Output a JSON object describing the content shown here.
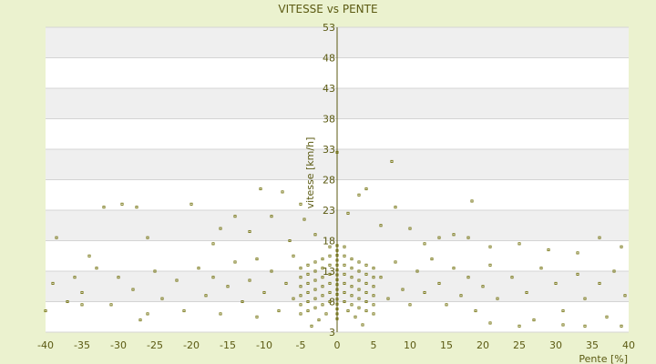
{
  "chart_data": {
    "type": "scatter",
    "title": "VITESSE vs PENTE",
    "xlabel": "Pente [%]",
    "ylabel": "vitesse [km/h]",
    "xlim": [
      -40,
      40
    ],
    "ylim": [
      3,
      53
    ],
    "x_ticks": [
      -40,
      -35,
      -30,
      -25,
      -20,
      -15,
      -10,
      -5,
      0,
      5,
      10,
      15,
      20,
      25,
      30,
      35,
      40
    ],
    "y_ticks": [
      3,
      8,
      13,
      18,
      23,
      28,
      33,
      38,
      43,
      48,
      53
    ],
    "grid": true,
    "legend": "none",
    "series": [
      {
        "marker_color": "#6b6a00",
        "points": [
          [
            0,
            5.2
          ],
          [
            0,
            6.0
          ],
          [
            0,
            6.8
          ],
          [
            0,
            7.6
          ],
          [
            0,
            8.4
          ],
          [
            0,
            9.2
          ],
          [
            0,
            10.0
          ],
          [
            0,
            10.8
          ],
          [
            0,
            11.6
          ],
          [
            0,
            12.4
          ],
          [
            0,
            13.2
          ],
          [
            0,
            14.0
          ],
          [
            0,
            14.8
          ],
          [
            0,
            15.6
          ],
          [
            0,
            16.4
          ],
          [
            0,
            17.2
          ],
          [
            0,
            32.5
          ],
          [
            -1,
            8.0
          ],
          [
            -1,
            9.5
          ],
          [
            -1,
            11.0
          ],
          [
            -1,
            12.5
          ],
          [
            -1,
            14.0
          ],
          [
            -1,
            15.5
          ],
          [
            -1,
            17.0
          ],
          [
            -2,
            7.5
          ],
          [
            -2,
            9.0
          ],
          [
            -2,
            10.5
          ],
          [
            -2,
            12.0
          ],
          [
            -2,
            13.5
          ],
          [
            -2,
            15.0
          ],
          [
            -3,
            7.0
          ],
          [
            -3,
            8.5
          ],
          [
            -3,
            10.0
          ],
          [
            -3,
            11.5
          ],
          [
            -3,
            13.0
          ],
          [
            -3,
            14.5
          ],
          [
            -4,
            6.5
          ],
          [
            -4,
            8.0
          ],
          [
            -4,
            9.5
          ],
          [
            -4,
            11.0
          ],
          [
            -4,
            12.5
          ],
          [
            -4,
            14.0
          ],
          [
            -5,
            6.0
          ],
          [
            -5,
            7.5
          ],
          [
            -5,
            9.0
          ],
          [
            -5,
            10.5
          ],
          [
            -5,
            12.0
          ],
          [
            -5,
            13.5
          ],
          [
            1,
            8.0
          ],
          [
            1,
            9.5
          ],
          [
            1,
            11.0
          ],
          [
            1,
            12.5
          ],
          [
            1,
            14.0
          ],
          [
            1,
            15.5
          ],
          [
            1,
            17.0
          ],
          [
            2,
            7.5
          ],
          [
            2,
            9.0
          ],
          [
            2,
            10.5
          ],
          [
            2,
            12.0
          ],
          [
            2,
            13.5
          ],
          [
            2,
            15.0
          ],
          [
            3,
            7.0
          ],
          [
            3,
            8.5
          ],
          [
            3,
            10.0
          ],
          [
            3,
            11.5
          ],
          [
            3,
            13.0
          ],
          [
            3,
            14.5
          ],
          [
            4,
            6.5
          ],
          [
            4,
            8.0
          ],
          [
            4,
            9.5
          ],
          [
            4,
            11.0
          ],
          [
            4,
            12.5
          ],
          [
            4,
            14.0
          ],
          [
            5,
            6.0
          ],
          [
            5,
            7.5
          ],
          [
            5,
            9.0
          ],
          [
            5,
            10.5
          ],
          [
            5,
            12.0
          ],
          [
            5,
            13.5
          ],
          [
            -38.5,
            18.5
          ],
          [
            -34,
            15.5
          ],
          [
            -32,
            23.5
          ],
          [
            -29.5,
            24.0
          ],
          [
            -27.5,
            23.5
          ],
          [
            -26,
            18.5
          ],
          [
            -20,
            24.0
          ],
          [
            -17,
            17.5
          ],
          [
            -16,
            20.0
          ],
          [
            -14,
            22.0
          ],
          [
            -12,
            19.5
          ],
          [
            -10.5,
            26.5
          ],
          [
            -9,
            22.0
          ],
          [
            -7.5,
            26.0
          ],
          [
            -6.5,
            18.0
          ],
          [
            -5,
            24.0
          ],
          [
            -4.5,
            21.5
          ],
          [
            -3,
            19.0
          ],
          [
            1.5,
            22.5
          ],
          [
            3,
            25.5
          ],
          [
            4,
            26.5
          ],
          [
            6,
            20.5
          ],
          [
            7.5,
            31.0
          ],
          [
            8,
            23.5
          ],
          [
            10,
            20.0
          ],
          [
            12,
            17.5
          ],
          [
            14,
            18.5
          ],
          [
            16,
            19.0
          ],
          [
            18,
            18.5
          ],
          [
            18.5,
            24.5
          ],
          [
            21,
            17.0
          ],
          [
            25,
            17.5
          ],
          [
            29,
            16.5
          ],
          [
            33,
            16.0
          ],
          [
            36,
            18.5
          ],
          [
            39,
            17.0
          ],
          [
            -39,
            11.0
          ],
          [
            -37,
            8.0
          ],
          [
            -36,
            12.0
          ],
          [
            -35,
            9.5
          ],
          [
            -33,
            13.5
          ],
          [
            -31,
            7.5
          ],
          [
            -30,
            12.0
          ],
          [
            -28,
            10.0
          ],
          [
            -27,
            5.0
          ],
          [
            -25,
            13.0
          ],
          [
            -24,
            8.5
          ],
          [
            -22,
            11.5
          ],
          [
            -21,
            6.5
          ],
          [
            -19,
            13.5
          ],
          [
            -18,
            9.0
          ],
          [
            -17,
            12.0
          ],
          [
            -15,
            10.5
          ],
          [
            -14,
            14.5
          ],
          [
            -13,
            8.0
          ],
          [
            -12,
            11.5
          ],
          [
            -11,
            15.0
          ],
          [
            -10,
            9.5
          ],
          [
            -9,
            13.0
          ],
          [
            -8,
            6.5
          ],
          [
            -7,
            11.0
          ],
          [
            -6,
            15.5
          ],
          [
            -6,
            8.5
          ],
          [
            6,
            12.0
          ],
          [
            7,
            8.5
          ],
          [
            8,
            14.5
          ],
          [
            9,
            10.0
          ],
          [
            10,
            7.5
          ],
          [
            11,
            13.0
          ],
          [
            12,
            9.5
          ],
          [
            13,
            15.0
          ],
          [
            14,
            11.0
          ],
          [
            15,
            7.5
          ],
          [
            16,
            13.5
          ],
          [
            17,
            9.0
          ],
          [
            18,
            12.0
          ],
          [
            19,
            6.5
          ],
          [
            20,
            10.5
          ],
          [
            21,
            14.0
          ],
          [
            22,
            8.5
          ],
          [
            24,
            12.0
          ],
          [
            26,
            9.5
          ],
          [
            27,
            5.0
          ],
          [
            28,
            13.5
          ],
          [
            30,
            11.0
          ],
          [
            31,
            6.5
          ],
          [
            33,
            12.5
          ],
          [
            34,
            8.5
          ],
          [
            36,
            11.0
          ],
          [
            37,
            5.5
          ],
          [
            38,
            13.0
          ],
          [
            39.5,
            9.0
          ],
          [
            -2.5,
            5.0
          ],
          [
            -3.5,
            4.0
          ],
          [
            -1.5,
            6.0
          ],
          [
            2.5,
            5.5
          ],
          [
            3.5,
            4.2
          ],
          [
            1.5,
            6.5
          ],
          [
            21,
            4.5
          ],
          [
            25,
            4.0
          ],
          [
            31,
            4.2
          ],
          [
            34,
            4.0
          ],
          [
            39,
            4.0
          ],
          [
            -40,
            6.5
          ],
          [
            -35,
            7.5
          ],
          [
            -26,
            6.0
          ],
          [
            -16,
            6.0
          ],
          [
            -11,
            5.5
          ]
        ]
      }
    ]
  }
}
